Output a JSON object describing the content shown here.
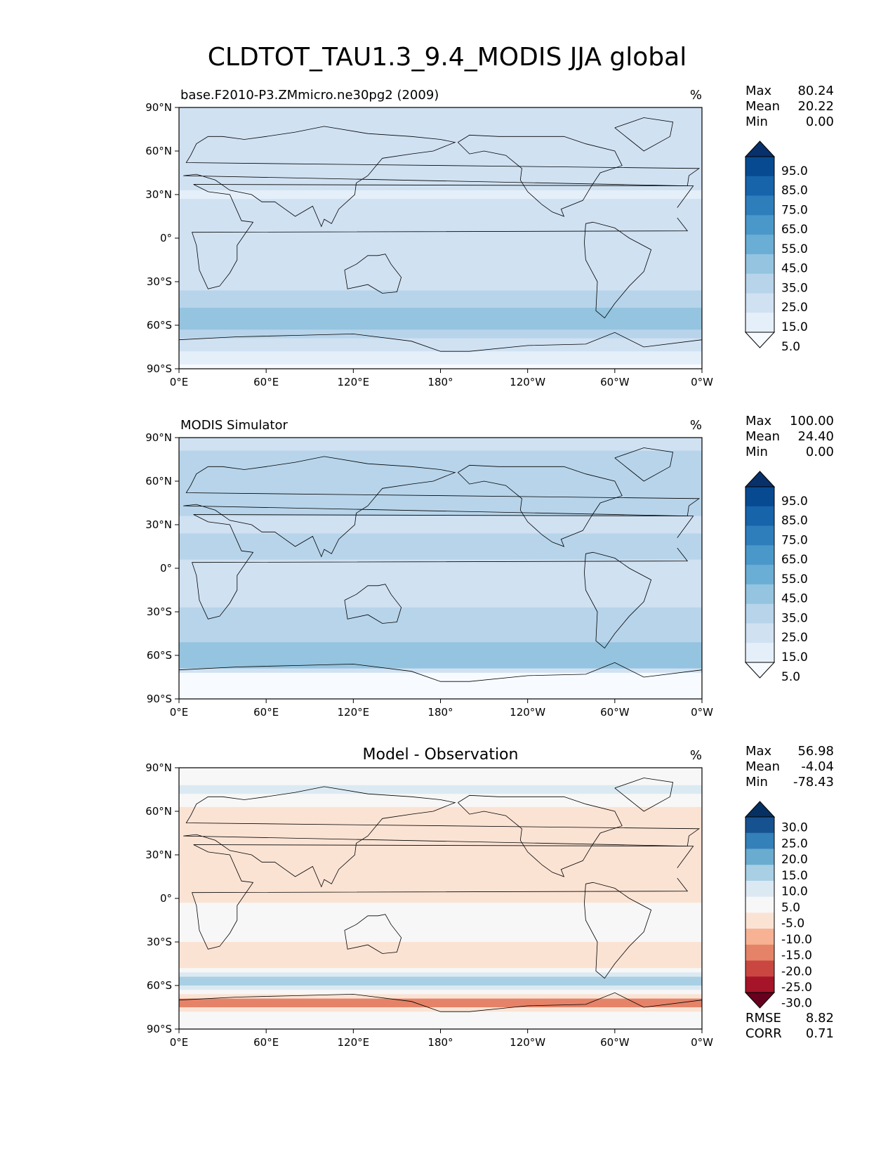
{
  "figure": {
    "title": "CLDTOT_TAU1.3_9.4_MODIS JJA global"
  },
  "colors": {
    "seq": [
      "#f7fbff",
      "#e4eff9",
      "#d0e1f2",
      "#b7d4ea",
      "#94c4df",
      "#6aaed6",
      "#4a98c9",
      "#2e7ebc",
      "#1764ab",
      "#084a91",
      "#08306b"
    ],
    "div": [
      "#67001f",
      "#a51429",
      "#ca4741",
      "#e58368",
      "#f6b293",
      "#fbe3d4",
      "#f7f7f7",
      "#dbe9f2",
      "#a8cfe4",
      "#6aacd0",
      "#3480b9",
      "#175290",
      "#053061"
    ],
    "land_stroke": "#000000"
  },
  "chart_data": [
    {
      "type": "heatmap",
      "left_title": "base.F2010-P3.ZMmicro.ne30pg2 (2009)",
      "center_title": "",
      "units": "%",
      "stats": {
        "Max": "80.24",
        "Mean": "20.22",
        "Min": "0.00"
      },
      "colorbar_ticks": [
        "95.0",
        "85.0",
        "75.0",
        "65.0",
        "55.0",
        "45.0",
        "35.0",
        "25.0",
        "15.0",
        "5.0"
      ],
      "colorbar_levels": [
        0,
        5,
        15,
        25,
        35,
        45,
        55,
        65,
        75,
        85,
        95,
        100
      ],
      "colormap": "seq",
      "xticks": [
        "0°E",
        "60°E",
        "120°E",
        "180°",
        "120°W",
        "60°W",
        "0°W"
      ],
      "yticks": [
        "90°N",
        "60°N",
        "30°N",
        "0°",
        "30°S",
        "60°S",
        "90°S"
      ],
      "xlim": [
        0,
        360
      ],
      "ylim": [
        -90,
        90
      ],
      "zonal_mean_profile": [
        {
          "lat": 90,
          "value": 15
        },
        {
          "lat": 70,
          "value": 22
        },
        {
          "lat": 50,
          "value": 22
        },
        {
          "lat": 30,
          "value": 14
        },
        {
          "lat": 15,
          "value": 18
        },
        {
          "lat": 0,
          "value": 20
        },
        {
          "lat": -20,
          "value": 18
        },
        {
          "lat": -40,
          "value": 26
        },
        {
          "lat": -55,
          "value": 44
        },
        {
          "lat": -65,
          "value": 32
        },
        {
          "lat": -75,
          "value": 18
        },
        {
          "lat": -90,
          "value": 0
        }
      ]
    },
    {
      "type": "heatmap",
      "left_title": "MODIS Simulator",
      "center_title": "",
      "units": "%",
      "stats": {
        "Max": "100.00",
        "Mean": "24.40",
        "Min": "0.00"
      },
      "colorbar_ticks": [
        "95.0",
        "85.0",
        "75.0",
        "65.0",
        "55.0",
        "45.0",
        "35.0",
        "25.0",
        "15.0",
        "5.0"
      ],
      "colorbar_levels": [
        0,
        5,
        15,
        25,
        35,
        45,
        55,
        65,
        75,
        85,
        95,
        100
      ],
      "colormap": "seq",
      "xticks": [
        "0°E",
        "60°E",
        "120°E",
        "180°",
        "120°W",
        "60°W",
        "0°W"
      ],
      "yticks": [
        "90°N",
        "60°N",
        "30°N",
        "0°",
        "30°S",
        "60°S",
        "90°S"
      ],
      "xlim": [
        0,
        360
      ],
      "ylim": [
        -90,
        90
      ],
      "zonal_mean_profile": [
        {
          "lat": 90,
          "value": 22
        },
        {
          "lat": 70,
          "value": 28
        },
        {
          "lat": 50,
          "value": 30
        },
        {
          "lat": 30,
          "value": 22
        },
        {
          "lat": 15,
          "value": 28
        },
        {
          "lat": 0,
          "value": 22
        },
        {
          "lat": -20,
          "value": 22
        },
        {
          "lat": -40,
          "value": 32
        },
        {
          "lat": -55,
          "value": 36
        },
        {
          "lat": -68,
          "value": 40
        },
        {
          "lat": -73,
          "value": 0
        },
        {
          "lat": -90,
          "value": 0
        }
      ]
    },
    {
      "type": "heatmap",
      "left_title": "",
      "center_title": "Model - Observation",
      "units": "%",
      "stats": {
        "Max": "56.98",
        "Mean": "-4.04",
        "Min": "-78.43"
      },
      "extra_stats": {
        "RMSE": "8.82",
        "CORR": "0.71"
      },
      "colorbar_ticks": [
        "30.0",
        "25.0",
        "20.0",
        "15.0",
        "10.0",
        "5.0",
        "-5.0",
        "-10.0",
        "-15.0",
        "-20.0",
        "-25.0",
        "-30.0"
      ],
      "colorbar_levels": [
        -35,
        -30,
        -25,
        -20,
        -15,
        -10,
        -5,
        5,
        10,
        15,
        20,
        25,
        30,
        35
      ],
      "colormap": "div",
      "xticks": [
        "0°E",
        "60°E",
        "120°E",
        "180°",
        "120°W",
        "60°W",
        "0°W"
      ],
      "yticks": [
        "90°N",
        "60°N",
        "30°N",
        "0°",
        "30°S",
        "60°S",
        "90°S"
      ],
      "xlim": [
        0,
        360
      ],
      "ylim": [
        -90,
        90
      ],
      "zonal_mean_profile": [
        {
          "lat": 85,
          "value": 0
        },
        {
          "lat": 75,
          "value": 8
        },
        {
          "lat": 60,
          "value": -8
        },
        {
          "lat": 40,
          "value": -6
        },
        {
          "lat": 20,
          "value": -10
        },
        {
          "lat": 5,
          "value": -6
        },
        {
          "lat": -10,
          "value": -4
        },
        {
          "lat": -30,
          "value": -5
        },
        {
          "lat": -45,
          "value": -8
        },
        {
          "lat": -58,
          "value": 15
        },
        {
          "lat": -65,
          "value": 4
        },
        {
          "lat": -72,
          "value": -22
        },
        {
          "lat": -80,
          "value": 0
        },
        {
          "lat": -90,
          "value": 0
        }
      ]
    }
  ]
}
